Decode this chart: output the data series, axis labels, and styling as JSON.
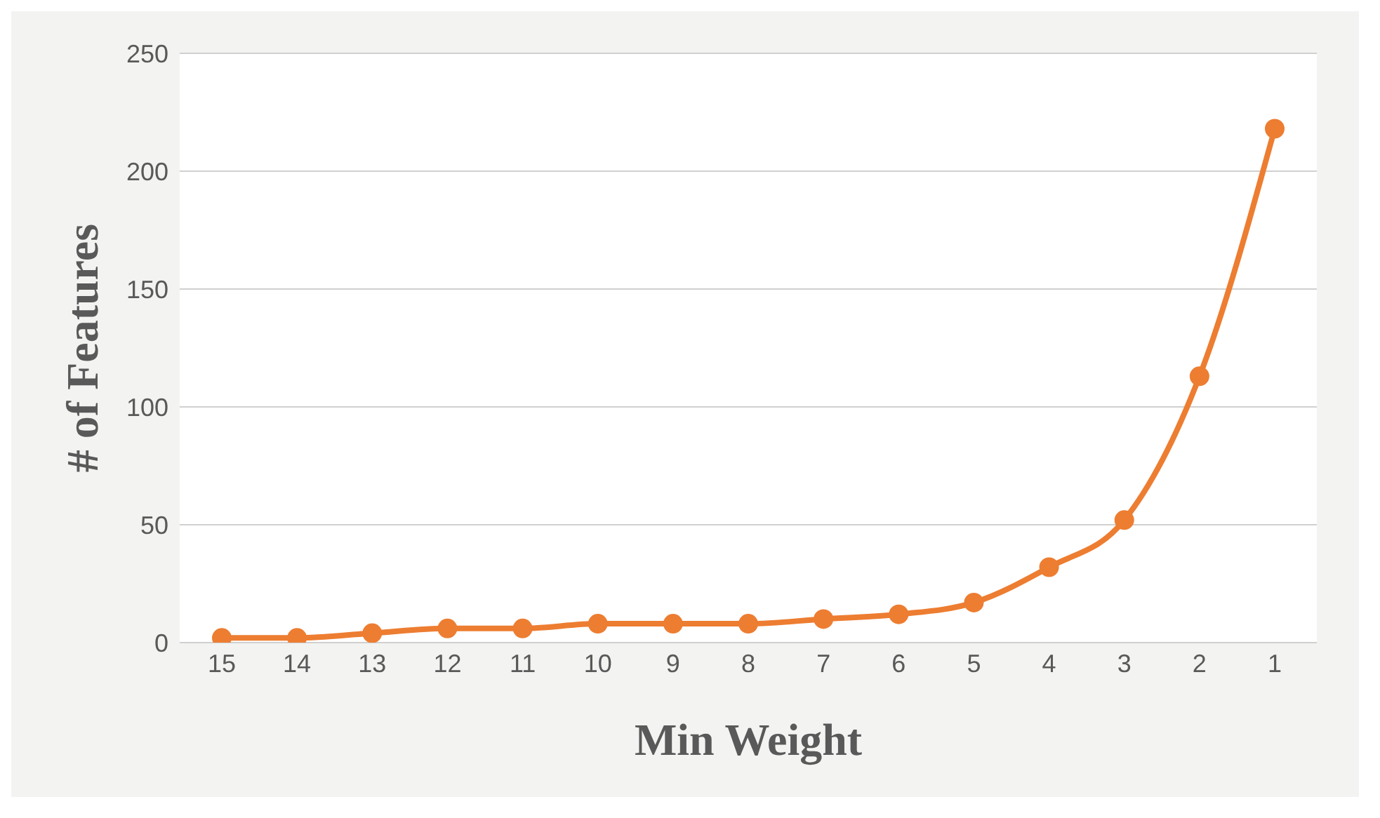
{
  "chart_data": {
    "type": "line",
    "xlabel": "Min Weight",
    "ylabel": "# of Features",
    "categories": [
      "15",
      "14",
      "13",
      "12",
      "11",
      "10",
      "9",
      "8",
      "7",
      "6",
      "5",
      "4",
      "3",
      "2",
      "1"
    ],
    "series": [
      {
        "color": "#ed7d31",
        "values": [
          2,
          2,
          4,
          6,
          6,
          8,
          8,
          8,
          10,
          12,
          17,
          32,
          52,
          113,
          218
        ]
      }
    ],
    "ylim": [
      0,
      250
    ],
    "yticks": [
      0,
      50,
      100,
      150,
      200,
      250
    ],
    "grid": "y",
    "marker": "circle"
  }
}
